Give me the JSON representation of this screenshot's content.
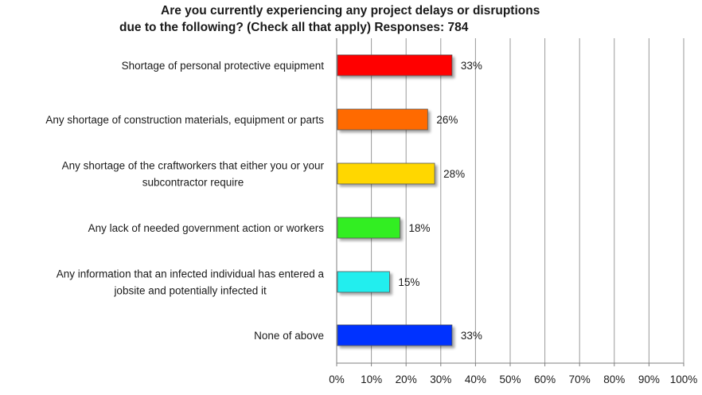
{
  "chart_data": {
    "type": "bar",
    "orientation": "horizontal",
    "title_lines": [
      "Are you currently experiencing any project delays or disruptions",
      "due to the following? (Check all that apply) Responses: 784"
    ],
    "categories": [
      [
        "Shortage of personal protective equipment"
      ],
      [
        "Any shortage of construction materials, equipment or parts"
      ],
      [
        "Any shortage of the craftworkers that either you or your",
        "subcontractor require"
      ],
      [
        "Any lack of needed government action or workers"
      ],
      [
        "Any information that an infected individual has entered a",
        "jobsite and potentially infected it"
      ],
      [
        "None of above"
      ]
    ],
    "values": [
      33,
      26,
      28,
      18,
      15,
      33
    ],
    "value_labels": [
      "33%",
      "26%",
      "28%",
      "18%",
      "15%",
      "33%"
    ],
    "bar_colors": [
      "#ff0000",
      "#ff6a00",
      "#ffd700",
      "#33ee22",
      "#22eeee",
      "#0033ff"
    ],
    "xlim": [
      0,
      100
    ],
    "x_ticks": [
      0,
      10,
      20,
      30,
      40,
      50,
      60,
      70,
      80,
      90,
      100
    ],
    "x_tick_labels": [
      "0%",
      "10%",
      "20%",
      "30%",
      "40%",
      "50%",
      "60%",
      "70%",
      "80%",
      "90%",
      "100%"
    ],
    "grid": "vertical",
    "legend": "none"
  }
}
